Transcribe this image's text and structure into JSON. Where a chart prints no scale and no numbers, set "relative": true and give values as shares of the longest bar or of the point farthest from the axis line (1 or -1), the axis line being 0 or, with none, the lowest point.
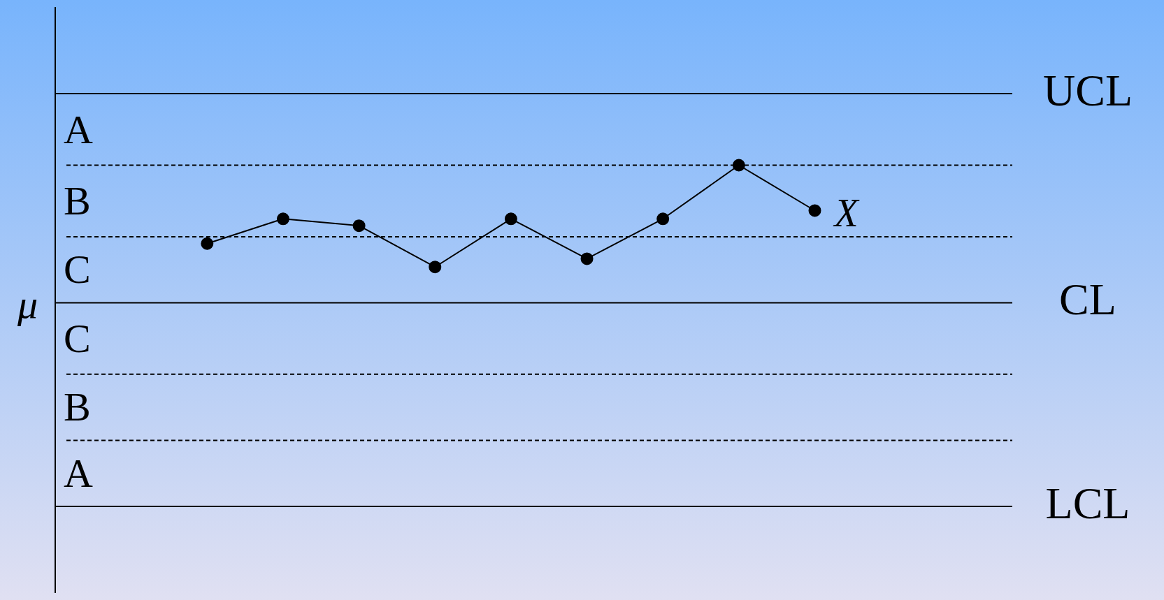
{
  "chart_data": {
    "type": "line",
    "relative": true,
    "ylabel": "μ",
    "marker": "circle",
    "line_style": "solid",
    "legend": false,
    "categories": [
      null,
      null,
      null,
      null,
      null,
      null,
      null,
      null,
      null
    ],
    "series": [
      {
        "name": "X",
        "color": "#000000",
        "values": [
          0.43,
          0.61,
          0.56,
          0.26,
          0.61,
          0.32,
          0.61,
          1.0,
          0.67
        ]
      }
    ],
    "ref_lines": [
      {
        "axis": "y",
        "value": 1.52,
        "label": "UCL",
        "line_style": "solid"
      },
      {
        "axis": "y",
        "value": 1.0,
        "line_style": "dashed"
      },
      {
        "axis": "y",
        "value": 0.48,
        "line_style": "dashed"
      },
      {
        "axis": "y",
        "value": 0,
        "label": "CL",
        "line_style": "solid"
      },
      {
        "axis": "y",
        "value": -0.52,
        "line_style": "dashed"
      },
      {
        "axis": "y",
        "value": -1.0,
        "line_style": "dashed"
      },
      {
        "axis": "y",
        "value": -1.48,
        "label": "LCL",
        "line_style": "solid"
      }
    ],
    "annotations": [
      "A",
      "B",
      "C",
      "C",
      "B",
      "A"
    ]
  }
}
